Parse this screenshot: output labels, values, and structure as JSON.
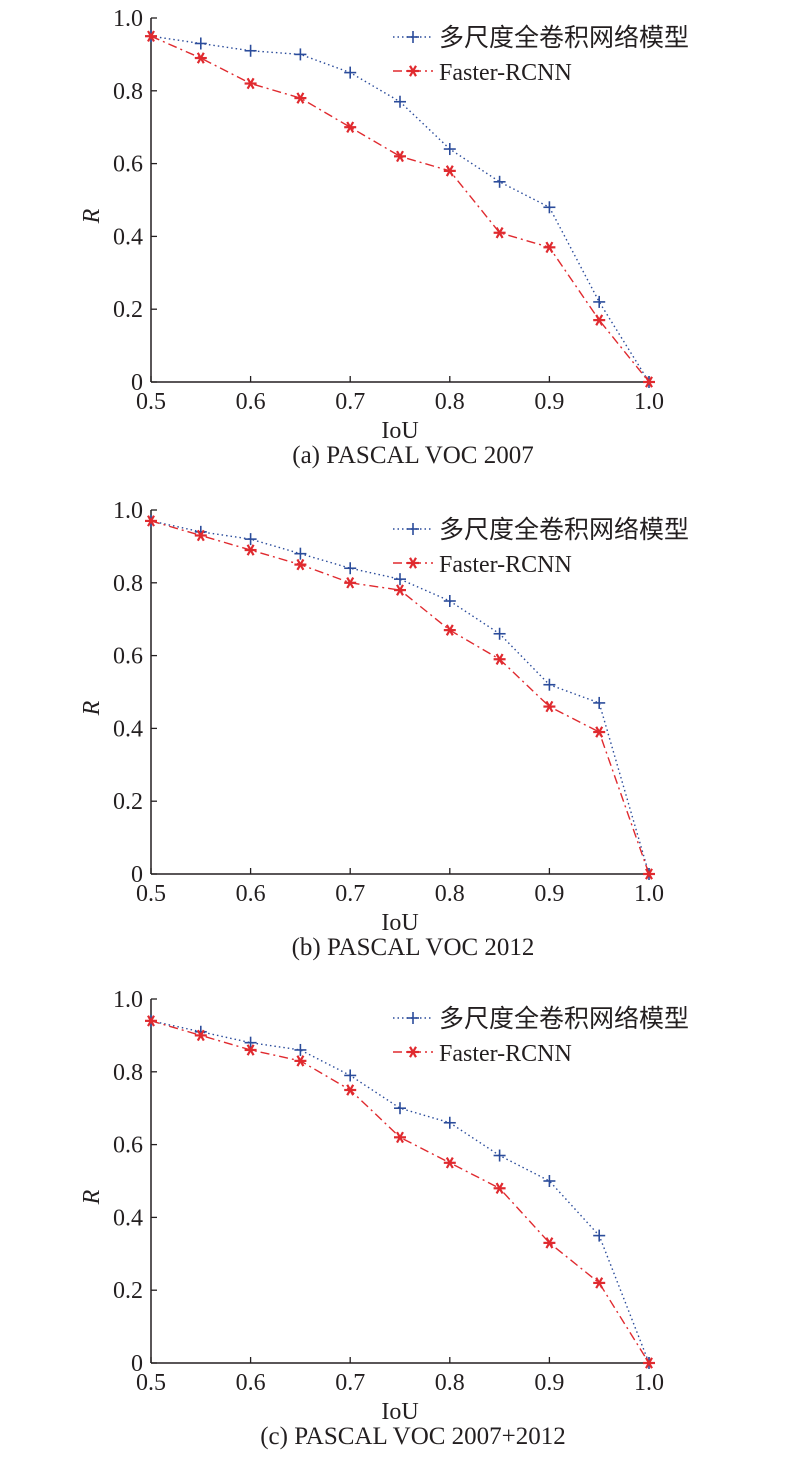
{
  "colors": {
    "series1": "#2b4c9b",
    "series2": "#e02a2f",
    "axis": "#231f20"
  },
  "chart_data": [
    {
      "type": "line",
      "caption": "(a) PASCAL VOC 2007",
      "xlabel": "IoU",
      "ylabel": "R",
      "xlim": [
        0.5,
        1.0
      ],
      "ylim": [
        0,
        1.0
      ],
      "x_ticks": [
        "0.5",
        "0.6",
        "0.7",
        "0.8",
        "0.9",
        "1.0"
      ],
      "y_ticks": [
        "0",
        "0.2",
        "0.4",
        "0.6",
        "0.8",
        "1.0"
      ],
      "legend_position": "top-right",
      "x": [
        0.5,
        0.55,
        0.6,
        0.65,
        0.7,
        0.75,
        0.8,
        0.85,
        0.9,
        0.95,
        1.0
      ],
      "series": [
        {
          "name": "多尺度全卷积网络模型",
          "marker": "plus",
          "line": "dotted",
          "values": [
            0.95,
            0.93,
            0.91,
            0.9,
            0.85,
            0.77,
            0.64,
            0.55,
            0.48,
            0.22,
            0.0
          ]
        },
        {
          "name": "Faster-RCNN",
          "marker": "asterisk",
          "line": "dash-dot",
          "values": [
            0.95,
            0.89,
            0.82,
            0.78,
            0.7,
            0.62,
            0.58,
            0.41,
            0.37,
            0.17,
            0.0
          ]
        }
      ]
    },
    {
      "type": "line",
      "caption": "(b) PASCAL VOC 2012",
      "xlabel": "IoU",
      "ylabel": "R",
      "xlim": [
        0.5,
        1.0
      ],
      "ylim": [
        0,
        1.0
      ],
      "x_ticks": [
        "0.5",
        "0.6",
        "0.7",
        "0.8",
        "0.9",
        "1.0"
      ],
      "y_ticks": [
        "0",
        "0.2",
        "0.4",
        "0.6",
        "0.8",
        "1.0"
      ],
      "legend_position": "top-right",
      "x": [
        0.5,
        0.55,
        0.6,
        0.65,
        0.7,
        0.75,
        0.8,
        0.85,
        0.9,
        0.95,
        1.0
      ],
      "series": [
        {
          "name": "多尺度全卷积网络模型",
          "marker": "plus",
          "line": "dotted",
          "values": [
            0.97,
            0.94,
            0.92,
            0.88,
            0.84,
            0.81,
            0.75,
            0.66,
            0.52,
            0.47,
            0.0
          ]
        },
        {
          "name": "Faster-RCNN",
          "marker": "asterisk",
          "line": "dash-dot",
          "values": [
            0.97,
            0.93,
            0.89,
            0.85,
            0.8,
            0.78,
            0.67,
            0.59,
            0.46,
            0.39,
            0.0
          ]
        }
      ]
    },
    {
      "type": "line",
      "caption": "(c) PASCAL VOC 2007+2012",
      "xlabel": "IoU",
      "ylabel": "R",
      "xlim": [
        0.5,
        1.0
      ],
      "ylim": [
        0,
        1.0
      ],
      "x_ticks": [
        "0.5",
        "0.6",
        "0.7",
        "0.8",
        "0.9",
        "1.0"
      ],
      "y_ticks": [
        "0",
        "0.2",
        "0.4",
        "0.6",
        "0.8",
        "1.0"
      ],
      "legend_position": "top-right",
      "x": [
        0.5,
        0.55,
        0.6,
        0.65,
        0.7,
        0.75,
        0.8,
        0.85,
        0.9,
        0.95,
        1.0
      ],
      "series": [
        {
          "name": "多尺度全卷积网络模型",
          "marker": "plus",
          "line": "dotted",
          "values": [
            0.94,
            0.91,
            0.88,
            0.86,
            0.79,
            0.7,
            0.66,
            0.57,
            0.5,
            0.35,
            0.0
          ]
        },
        {
          "name": "Faster-RCNN",
          "marker": "asterisk",
          "line": "dash-dot",
          "values": [
            0.94,
            0.9,
            0.86,
            0.83,
            0.75,
            0.62,
            0.55,
            0.48,
            0.33,
            0.22,
            0.0
          ]
        }
      ]
    }
  ]
}
